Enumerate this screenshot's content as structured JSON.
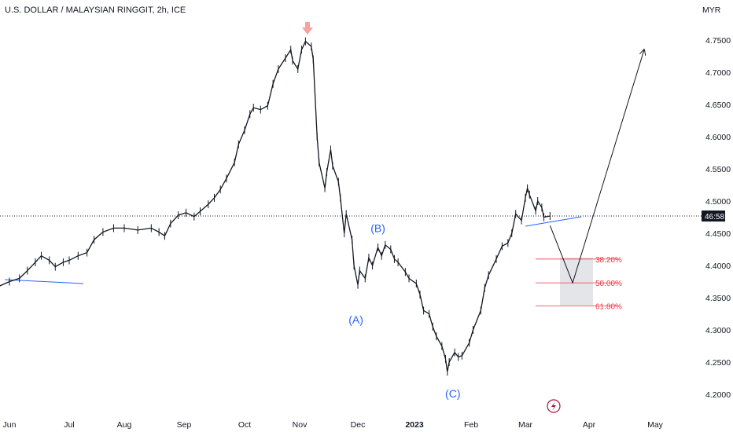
{
  "chart_data": {
    "type": "line",
    "title": "U.S. DOLLAR / MALAYSIAN RINGGIT, 2h, ICE",
    "currency_label": "MYR",
    "price_axis": {
      "ticks": [
        "4.7500",
        "4.7000",
        "4.6500",
        "4.6000",
        "4.5500",
        "4.5000",
        "4.4500",
        "4.4000",
        "4.3500",
        "4.3000",
        "4.2500",
        "4.2000"
      ],
      "ylim": [
        4.195,
        4.8
      ]
    },
    "time_axis": {
      "ticks": [
        "Jun",
        "Jul",
        "Aug",
        "Sep",
        "Oct",
        "Nov",
        "Dec",
        "2023",
        "Feb",
        "Mar",
        "Apr",
        "May"
      ],
      "bold_tick": "2023"
    },
    "current_price_label": "46:58",
    "current_price": 4.4768,
    "series": [
      {
        "values": [
          [
            "2022-05-27",
            4.368
          ],
          [
            "2022-06-01",
            4.375
          ],
          [
            "2022-06-06",
            4.38
          ],
          [
            "2022-06-10",
            4.392
          ],
          [
            "2022-06-14",
            4.405
          ],
          [
            "2022-06-17",
            4.415
          ],
          [
            "2022-06-21",
            4.408
          ],
          [
            "2022-06-24",
            4.398
          ],
          [
            "2022-06-28",
            4.405
          ],
          [
            "2022-07-01",
            4.408
          ],
          [
            "2022-07-06",
            4.415
          ],
          [
            "2022-07-11",
            4.42
          ],
          [
            "2022-07-15",
            4.44
          ],
          [
            "2022-07-20",
            4.452
          ],
          [
            "2022-07-26",
            4.458
          ],
          [
            "2022-08-01",
            4.458
          ],
          [
            "2022-08-08",
            4.455
          ],
          [
            "2022-08-15",
            4.458
          ],
          [
            "2022-08-19",
            4.452
          ],
          [
            "2022-08-22",
            4.446
          ],
          [
            "2022-08-25",
            4.465
          ],
          [
            "2022-08-29",
            4.478
          ],
          [
            "2022-09-02",
            4.482
          ],
          [
            "2022-09-06",
            4.476
          ],
          [
            "2022-09-09",
            4.484
          ],
          [
            "2022-09-13",
            4.495
          ],
          [
            "2022-09-16",
            4.505
          ],
          [
            "2022-09-19",
            4.518
          ],
          [
            "2022-09-22",
            4.535
          ],
          [
            "2022-09-26",
            4.56
          ],
          [
            "2022-09-28",
            4.588
          ],
          [
            "2022-10-01",
            4.61
          ],
          [
            "2022-10-04",
            4.635
          ],
          [
            "2022-10-06",
            4.645
          ],
          [
            "2022-10-10",
            4.642
          ],
          [
            "2022-10-14",
            4.648
          ],
          [
            "2022-10-17",
            4.682
          ],
          [
            "2022-10-20",
            4.705
          ],
          [
            "2022-10-24",
            4.722
          ],
          [
            "2022-10-27",
            4.735
          ],
          [
            "2022-10-28",
            4.718
          ],
          [
            "2022-10-31",
            4.705
          ],
          [
            "2022-11-02",
            4.735
          ],
          [
            "2022-11-04",
            4.748
          ],
          [
            "2022-11-07",
            4.74
          ],
          [
            "2022-11-08",
            4.72
          ],
          [
            "2022-11-10",
            4.6
          ],
          [
            "2022-11-11",
            4.56
          ],
          [
            "2022-11-14",
            4.52
          ],
          [
            "2022-11-15",
            4.545
          ],
          [
            "2022-11-17",
            4.58
          ],
          [
            "2022-11-18",
            4.555
          ],
          [
            "2022-11-21",
            4.53
          ],
          [
            "2022-11-22",
            4.505
          ],
          [
            "2022-11-24",
            4.45
          ],
          [
            "2022-11-25",
            4.48
          ],
          [
            "2022-11-28",
            4.44
          ],
          [
            "2022-11-29",
            4.4
          ],
          [
            "2022-12-01",
            4.37
          ],
          [
            "2022-12-02",
            4.392
          ],
          [
            "2022-12-05",
            4.38
          ],
          [
            "2022-12-07",
            4.412
          ],
          [
            "2022-12-09",
            4.4
          ],
          [
            "2022-12-12",
            4.428
          ],
          [
            "2022-12-14",
            4.415
          ],
          [
            "2022-12-16",
            4.432
          ],
          [
            "2022-12-19",
            4.425
          ],
          [
            "2022-12-21",
            4.41
          ],
          [
            "2022-12-23",
            4.405
          ],
          [
            "2022-12-27",
            4.39
          ],
          [
            "2022-12-29",
            4.38
          ],
          [
            "2023-01-02",
            4.372
          ],
          [
            "2023-01-04",
            4.355
          ],
          [
            "2023-01-06",
            4.33
          ],
          [
            "2023-01-09",
            4.325
          ],
          [
            "2023-01-11",
            4.305
          ],
          [
            "2023-01-13",
            4.29
          ],
          [
            "2023-01-16",
            4.275
          ],
          [
            "2023-01-18",
            4.255
          ],
          [
            "2023-01-19",
            4.235
          ],
          [
            "2023-01-20",
            4.25
          ],
          [
            "2023-01-23",
            4.265
          ],
          [
            "2023-01-25",
            4.258
          ],
          [
            "2023-01-27",
            4.26
          ],
          [
            "2023-01-31",
            4.28
          ],
          [
            "2023-02-02",
            4.3
          ],
          [
            "2023-02-06",
            4.33
          ],
          [
            "2023-02-08",
            4.365
          ],
          [
            "2023-02-10",
            4.385
          ],
          [
            "2023-02-14",
            4.41
          ],
          [
            "2023-02-17",
            4.43
          ],
          [
            "2023-02-20",
            4.435
          ],
          [
            "2023-02-22",
            4.45
          ],
          [
            "2023-02-24",
            4.48
          ],
          [
            "2023-02-27",
            4.47
          ],
          [
            "2023-03-01",
            4.505
          ],
          [
            "2023-03-02",
            4.52
          ],
          [
            "2023-03-03",
            4.51
          ],
          [
            "2023-03-06",
            4.485
          ],
          [
            "2023-03-07",
            4.5
          ],
          [
            "2023-03-09",
            4.49
          ],
          [
            "2023-03-10",
            4.475
          ],
          [
            "2023-03-13",
            4.4768
          ]
        ]
      }
    ],
    "annotations": {
      "wave_labels": [
        {
          "text": "(A)",
          "x": "2022-11-30",
          "y": 4.31
        },
        {
          "text": "(B)",
          "x": "2022-12-12",
          "y": 4.452
        },
        {
          "text": "(C)",
          "x": "2023-01-22",
          "y": 4.195
        }
      ],
      "fibonacci": [
        {
          "label": "38.20%",
          "price": 4.41
        },
        {
          "label": "50.00%",
          "price": 4.373
        },
        {
          "label": "61.80%",
          "price": 4.337
        }
      ],
      "projection_path": [
        [
          "2023-03-13",
          4.462
        ],
        [
          "2023-03-24",
          4.373
        ],
        [
          "2023-04-26",
          4.735
        ]
      ]
    }
  }
}
